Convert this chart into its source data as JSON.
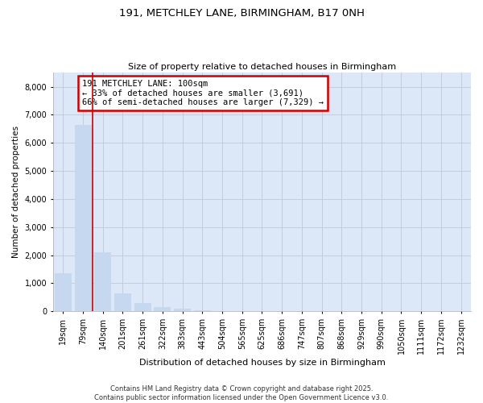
{
  "title_line1": "191, METCHLEY LANE, BIRMINGHAM, B17 0NH",
  "title_line2": "Size of property relative to detached houses in Birmingham",
  "xlabel": "Distribution of detached houses by size in Birmingham",
  "ylabel": "Number of detached properties",
  "categories": [
    "19sqm",
    "79sqm",
    "140sqm",
    "201sqm",
    "261sqm",
    "322sqm",
    "383sqm",
    "443sqm",
    "504sqm",
    "565sqm",
    "625sqm",
    "686sqm",
    "747sqm",
    "807sqm",
    "868sqm",
    "929sqm",
    "990sqm",
    "1050sqm",
    "1111sqm",
    "1172sqm",
    "1232sqm"
  ],
  "values": [
    1350,
    6650,
    2100,
    650,
    310,
    160,
    90,
    50,
    10,
    0,
    0,
    0,
    0,
    0,
    0,
    0,
    0,
    0,
    0,
    0,
    0
  ],
  "bar_color": "#c5d8f0",
  "bar_edgecolor": "none",
  "grid_color": "#c0c8d8",
  "vline_x": 1.5,
  "vline_color": "#cc0000",
  "annotation_text": "191 METCHLEY LANE: 100sqm\n← 33% of detached houses are smaller (3,691)\n66% of semi-detached houses are larger (7,329) →",
  "annotation_box_color": "#cc0000",
  "ylim": [
    0,
    8500
  ],
  "yticks": [
    0,
    1000,
    2000,
    3000,
    4000,
    5000,
    6000,
    7000,
    8000
  ],
  "footer_line1": "Contains HM Land Registry data © Crown copyright and database right 2025.",
  "footer_line2": "Contains public sector information licensed under the Open Government Licence v3.0.",
  "bg_color": "#ffffff",
  "plot_bg_color": "#dce8f8"
}
